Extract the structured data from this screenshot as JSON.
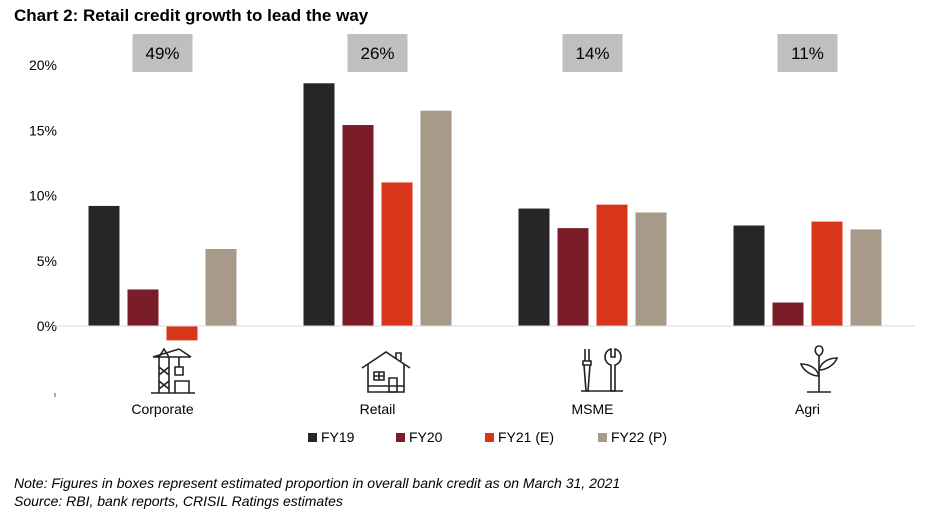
{
  "title": "Chart 2: Retail credit growth to lead the way",
  "notes": [
    "Note: Figures in boxes represent estimated proportion in overall bank credit as on March 31, 2021",
    "Source: RBI, bank reports, CRISIL Ratings estimates"
  ],
  "colors": {
    "FY19": "#262626",
    "FY20": "#7B1C29",
    "FY21 (E)": "#D8361A",
    "FY22 (P)": "#A89A89",
    "share_box": "#BFBFBF"
  },
  "icons": [
    "construction-crane-icon",
    "house-icon",
    "tools-icon",
    "plant-icon"
  ],
  "chart_data": {
    "type": "bar",
    "title": "Chart 2: Retail credit growth to lead the way",
    "categories": [
      "Corporate",
      "Retail",
      "MSME",
      "Agri"
    ],
    "category_share_labels": [
      "49%",
      "26%",
      "14%",
      "11%"
    ],
    "series": [
      {
        "name": "FY19",
        "values": [
          9.2,
          18.6,
          9.0,
          7.7
        ]
      },
      {
        "name": "FY20",
        "values": [
          2.8,
          15.4,
          7.5,
          1.8
        ]
      },
      {
        "name": "FY21 (E)",
        "values": [
          -1.1,
          11.0,
          9.3,
          8.0
        ]
      },
      {
        "name": "FY22 (P)",
        "values": [
          5.9,
          16.5,
          8.7,
          7.4
        ]
      }
    ],
    "yticks": [
      "0%",
      "5%",
      "10%",
      "15%",
      "20%"
    ],
    "ylim": [
      -5,
      20
    ],
    "grid": false,
    "legend_position": "bottom"
  }
}
